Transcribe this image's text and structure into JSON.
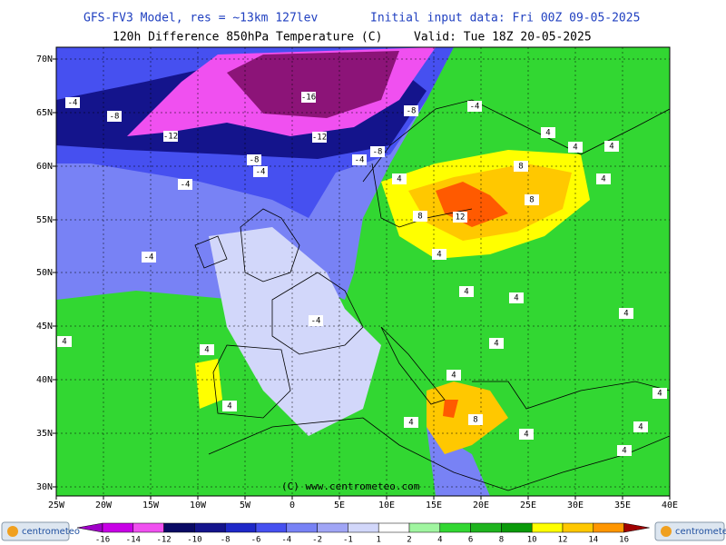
{
  "header": {
    "model": "GFS-FV3 Model, res = ~13km 127lev",
    "init": "Initial input data: Fri 00Z 09-05-2025",
    "field": "120h Difference 850hPa Temperature (C)",
    "valid": "Valid: Tue 18Z 20-05-2025"
  },
  "copyright": "(C) www.centrometeo.com",
  "logo": "centrometeo",
  "lat_labels": [
    "70N",
    "65N",
    "60N",
    "55N",
    "50N",
    "45N",
    "40N",
    "35N",
    "30N"
  ],
  "lon_labels": [
    "25W",
    "20W",
    "15W",
    "10W",
    "5W",
    "0",
    "5E",
    "10E",
    "15E",
    "20E",
    "25E",
    "30E",
    "35E",
    "40E"
  ],
  "contour_labels": [
    "-4",
    "-8",
    "-16",
    "-12",
    "-12",
    "-8",
    "-4",
    "-8",
    "-4",
    "-8",
    "-4",
    "-4",
    "4",
    "8",
    "4",
    "4",
    "4",
    "4",
    "8",
    "8",
    "12",
    "4",
    "-4",
    "4",
    "4",
    "4",
    "-4",
    "4",
    "4",
    "4",
    "4",
    "4",
    "4",
    "8",
    "4",
    "4",
    "4",
    "4"
  ],
  "colorbar": {
    "labels": [
      "-16",
      "-14",
      "-12",
      "-10",
      "-8",
      "-6",
      "-4",
      "-2",
      "-1",
      "1",
      "2",
      "4",
      "6",
      "8",
      "10",
      "12",
      "14",
      "16"
    ],
    "colors": [
      "#a000c8",
      "#c800e6",
      "#f050f0",
      "#0a0a64",
      "#14148c",
      "#1e28c8",
      "#4650f0",
      "#7882f5",
      "#a0a5f5",
      "#d2d7fa",
      "#ffffff",
      "#a0f5a0",
      "#32d732",
      "#1eb41e",
      "#0a9a0a",
      "#ffff00",
      "#ffc800",
      "#ff9600",
      "#ff5a00",
      "#e61400",
      "#a00000"
    ]
  }
}
